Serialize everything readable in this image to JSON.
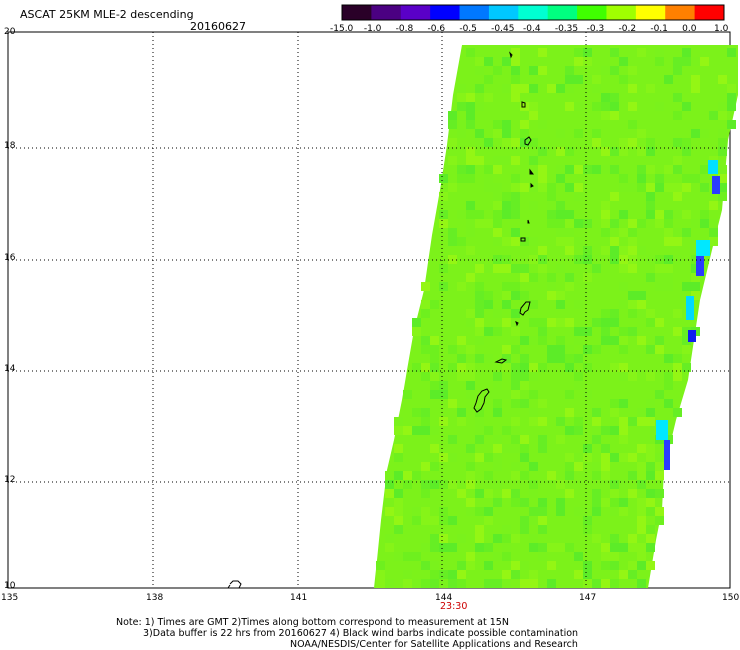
{
  "header": {
    "title": "ASCAT 25KM MLE-2 descending",
    "date": "20160627"
  },
  "colorbar": {
    "labels": [
      "-15.0",
      "-1.0",
      "-0.8",
      "-0.6",
      "-0.5",
      "-0.45",
      "-0.4",
      "-0.35",
      "-0.3",
      "-0.2",
      "-0.1",
      "0.0",
      "1.0"
    ],
    "colors": [
      "#2a0028",
      "#4b0082",
      "#5a00c8",
      "#0000ff",
      "#0078ff",
      "#00c8ff",
      "#00ffd2",
      "#00ff80",
      "#40ff00",
      "#a0ff00",
      "#ffff00",
      "#ff8000",
      "#ff0000"
    ]
  },
  "axes": {
    "lat_labels": [
      "20",
      "18",
      "16",
      "14",
      "12",
      "10"
    ],
    "lon_labels": [
      "135",
      "138",
      "141",
      "144",
      "147",
      "150"
    ]
  },
  "swath": {
    "time_label": "23:30",
    "fill_color": "#7cf21a"
  },
  "notes": {
    "line1": "Note: 1) Times are GMT 2)Times along bottom correspond to measurement at 15N",
    "line2": "3)Data buffer is 22 hrs from 20160627 4) Black wind barbs indicate possible contamination",
    "line3": "NOAA/NESDIS/Center for Satellite Applications and Research"
  }
}
